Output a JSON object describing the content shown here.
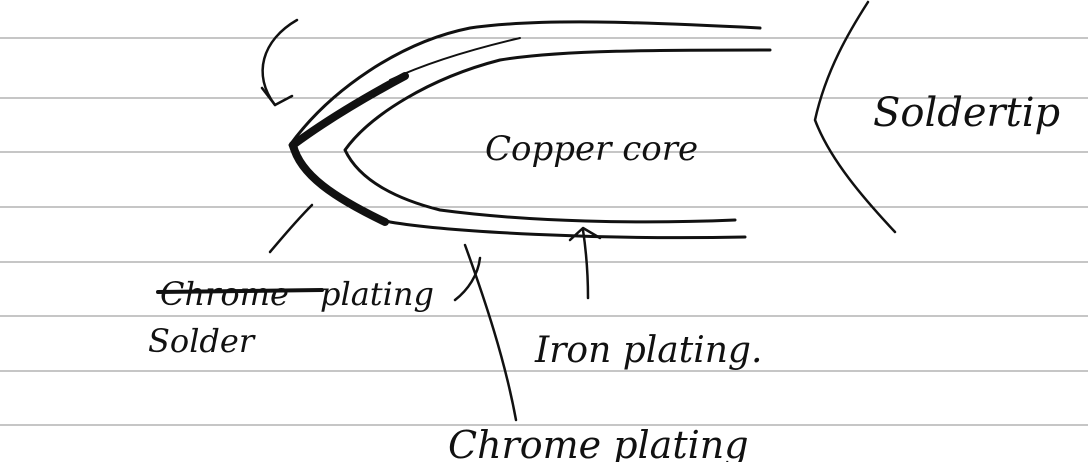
{
  "diagram": {
    "labels": {
      "solder_tip": "Soldertip",
      "copper_core": "Copper core",
      "iron_plating": "Iron plating.",
      "chrome_plating": "Chrome plating",
      "struck_word": "Chrome",
      "plating_word": "plating",
      "solder": "Solder"
    },
    "colors": {
      "ink": "#111111",
      "rule_lines": "#8c8c8c",
      "paper": "#ffffff"
    }
  }
}
